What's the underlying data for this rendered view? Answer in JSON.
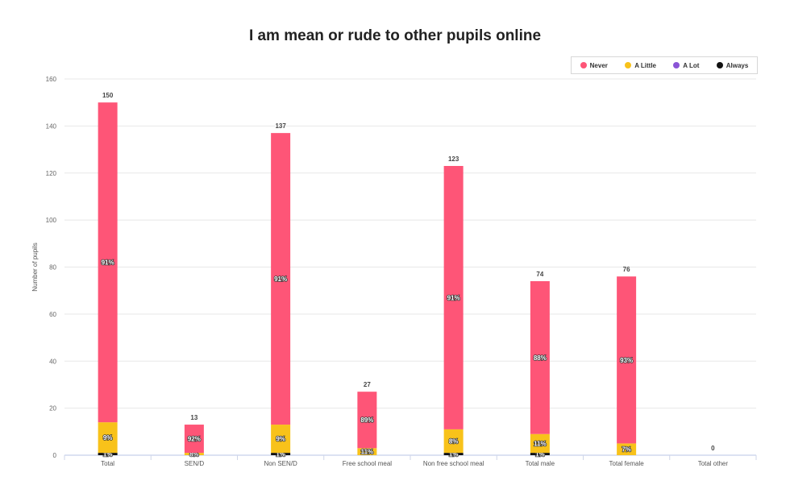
{
  "chart_data": {
    "type": "bar",
    "stacked": true,
    "title": "I am mean or rude to other pupils online",
    "ylabel": "Number of pupils",
    "xlabel": "",
    "ylim": [
      0,
      160
    ],
    "yticks": [
      0,
      20,
      40,
      60,
      80,
      100,
      120,
      140,
      160
    ],
    "grid": true,
    "legend_position": "top-right",
    "categories": [
      "Total",
      "SEN/D",
      "Non SEN/D",
      "Free school meal",
      "Non free school meal",
      "Total male",
      "Total female",
      "Total other"
    ],
    "totals": [
      150,
      13,
      137,
      27,
      123,
      74,
      76,
      0
    ],
    "series": [
      {
        "name": "Never",
        "color": "#fe5577",
        "values": [
          136,
          12,
          124,
          24,
          112,
          65,
          71,
          0
        ],
        "labels": [
          "91%",
          "92%",
          "91%",
          "89%",
          "91%",
          "88%",
          "93%",
          ""
        ]
      },
      {
        "name": "A Little",
        "color": "#f8c21a",
        "values": [
          13,
          1,
          12,
          3,
          10,
          8,
          5,
          0
        ],
        "labels": [
          "9%",
          "8%",
          "9%",
          "11%",
          "8%",
          "11%",
          "7%",
          ""
        ]
      },
      {
        "name": "A Lot",
        "color": "#8a54d6",
        "values": [
          0,
          0,
          0,
          0,
          0,
          0,
          0,
          0
        ],
        "labels": [
          "",
          "",
          "",
          "",
          "",
          "",
          "",
          ""
        ]
      },
      {
        "name": "Always",
        "color": "#111111",
        "values": [
          1,
          0,
          1,
          0,
          1,
          1,
          0,
          0
        ],
        "labels": [
          "1%",
          "",
          "1%",
          "",
          "1%",
          "1%",
          "",
          ""
        ]
      }
    ]
  }
}
